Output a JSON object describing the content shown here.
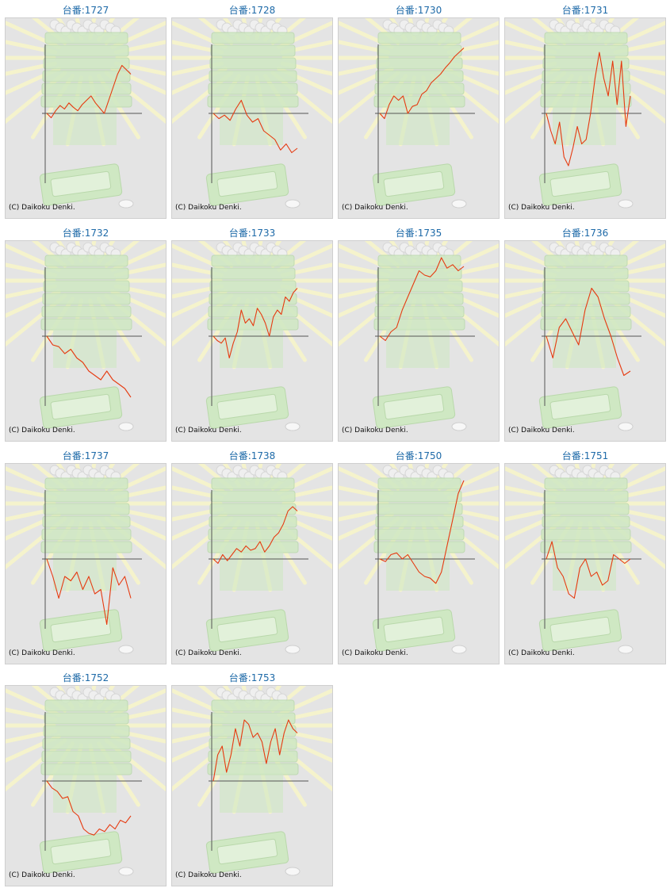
{
  "copyright": "(C) Daikoku Denki.",
  "colors": {
    "label": "#1e6aa8",
    "line": "#e63a10",
    "axis": "#555555",
    "panel_bg": "#e4e4e4",
    "watermark": "#cfe8c3",
    "rays": "#f5f3cc"
  },
  "background_icon": "slot-machine-medal-box-watermark",
  "chart_data": [
    {
      "type": "line",
      "title": "台番:1727",
      "y": [
        0,
        -5,
        3,
        9,
        5,
        12,
        7,
        3,
        10,
        15,
        20,
        12,
        6,
        0,
        15,
        30,
        45,
        55,
        50,
        45
      ]
    },
    {
      "type": "line",
      "title": "台番:1728",
      "y": [
        0,
        -6,
        -2,
        -8,
        5,
        15,
        -2,
        -10,
        -6,
        -20,
        -25,
        -30,
        -42,
        -35,
        -45,
        -40
      ]
    },
    {
      "type": "line",
      "title": "台番:1730",
      "y": [
        0,
        -6,
        10,
        20,
        15,
        20,
        0,
        8,
        10,
        22,
        26,
        35,
        40,
        45,
        52,
        58,
        65,
        70,
        75
      ]
    },
    {
      "type": "line",
      "title": "台番:1731",
      "y": [
        0,
        -20,
        -35,
        -10,
        -50,
        -60,
        -40,
        -15,
        -35,
        -30,
        0,
        40,
        70,
        40,
        20,
        60,
        10,
        60,
        -15,
        20
      ]
    },
    {
      "type": "line",
      "title": "台番:1732",
      "y": [
        0,
        -10,
        -12,
        -20,
        -15,
        -25,
        -30,
        -40,
        -45,
        -50,
        -40,
        -50,
        -55,
        -60,
        -70
      ]
    },
    {
      "type": "line",
      "title": "台番:1733",
      "y": [
        0,
        -5,
        -8,
        -2,
        -25,
        -8,
        5,
        30,
        15,
        20,
        12,
        32,
        25,
        15,
        0,
        22,
        30,
        25,
        45,
        40,
        50,
        55
      ]
    },
    {
      "type": "line",
      "title": "台番:1735",
      "y": [
        0,
        -5,
        5,
        10,
        30,
        45,
        60,
        75,
        70,
        68,
        75,
        90,
        78,
        82,
        75,
        80
      ]
    },
    {
      "type": "line",
      "title": "台番:1736",
      "y": [
        0,
        -25,
        10,
        20,
        5,
        -10,
        30,
        55,
        45,
        20,
        0,
        -25,
        -45,
        -40
      ]
    },
    {
      "type": "line",
      "title": "台番:1737",
      "y": [
        0,
        -20,
        -45,
        -20,
        -25,
        -15,
        -35,
        -20,
        -40,
        -35,
        -75,
        -10,
        -30,
        -20,
        -45
      ]
    },
    {
      "type": "line",
      "title": "台番:1738",
      "y": [
        0,
        -5,
        5,
        -2,
        5,
        12,
        8,
        15,
        10,
        12,
        20,
        8,
        15,
        25,
        30,
        40,
        55,
        60,
        55
      ]
    },
    {
      "type": "line",
      "title": "台番:1750",
      "y": [
        0,
        -3,
        5,
        7,
        0,
        5,
        -5,
        -15,
        -20,
        -22,
        -28,
        -15,
        15,
        45,
        75,
        90
      ]
    },
    {
      "type": "line",
      "title": "台番:1751",
      "y": [
        0,
        20,
        -10,
        -20,
        -40,
        -45,
        -10,
        0,
        -20,
        -15,
        -30,
        -25,
        5,
        0,
        -5,
        0
      ]
    },
    {
      "type": "line",
      "title": "台番:1752",
      "y": [
        0,
        -8,
        -12,
        -20,
        -18,
        -35,
        -40,
        -55,
        -60,
        -62,
        -55,
        -58,
        -50,
        -55,
        -45,
        -48,
        -40
      ]
    },
    {
      "type": "line",
      "title": "台番:1753",
      "y": [
        0,
        30,
        40,
        10,
        30,
        60,
        40,
        70,
        65,
        50,
        55,
        45,
        20,
        45,
        60,
        30,
        55,
        70,
        60,
        55
      ]
    }
  ]
}
